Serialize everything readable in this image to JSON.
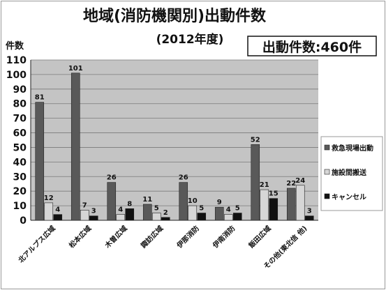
{
  "title": "地域(消防機関別)出動件数",
  "subtitle": "(2012年度)",
  "total_box": "出動件数:460件",
  "colors": {
    "plot_bg": "#c4c4c4",
    "series": [
      "#595959",
      "#d6d6d6",
      "#111111"
    ]
  },
  "chart_data": {
    "type": "bar",
    "ylabel": "件数",
    "xlabel": "",
    "ylim": [
      0,
      110
    ],
    "yticks": [
      0,
      10,
      20,
      30,
      40,
      50,
      60,
      70,
      80,
      90,
      100,
      110
    ],
    "grid": true,
    "legend_position": "right",
    "categories": [
      "北アルプス広域",
      "松本広域",
      "木曽広域",
      "諏訪広域",
      "伊那消防",
      "伊南消防",
      "飯田広域",
      "その他(東北信 他)"
    ],
    "series": [
      {
        "name": "救急現場出動",
        "values": [
          81,
          101,
          26,
          11,
          26,
          9,
          52,
          22
        ]
      },
      {
        "name": "施設間搬送",
        "values": [
          12,
          7,
          4,
          5,
          10,
          4,
          21,
          24
        ]
      },
      {
        "name": "キャンセル",
        "values": [
          4,
          3,
          8,
          2,
          5,
          5,
          15,
          3
        ]
      }
    ]
  }
}
